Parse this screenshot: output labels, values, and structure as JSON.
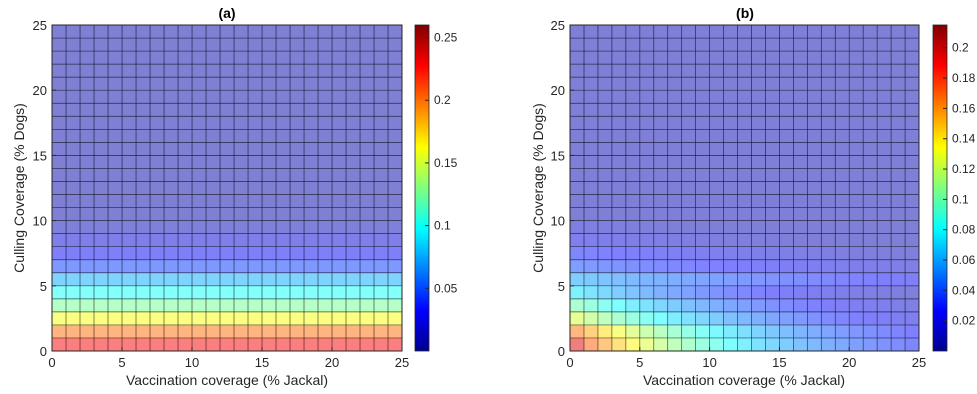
{
  "chart_data": [
    {
      "type": "heatmap",
      "title": "(a)",
      "xlabel": "Vaccination coverage (% Jackal)",
      "ylabel": "Culling Coverage (% Dogs)",
      "xlim": [
        0,
        25
      ],
      "ylim": [
        0,
        25
      ],
      "xticks": [
        0,
        5,
        10,
        15,
        20,
        25
      ],
      "yticks": [
        0,
        5,
        10,
        15,
        20,
        25
      ],
      "grid_cells": [
        25,
        25
      ],
      "colormap": "jet",
      "colorbar": {
        "range": [
          0,
          0.26
        ],
        "ticks": [
          0.05,
          0.1,
          0.15,
          0.2,
          0.25
        ],
        "tick_labels": [
          "0.05",
          "0.1",
          "0.15",
          "0.2",
          "0.25"
        ]
      },
      "row_values": [
        0.23,
        0.2,
        0.16,
        0.125,
        0.1,
        0.075,
        0.045,
        0.03,
        0.022,
        0.015,
        0.01
      ]
    },
    {
      "type": "heatmap",
      "title": "(b)",
      "xlabel": "Vaccination coverage (% Jackal)",
      "ylabel": "Culling Coverage (% Dogs)",
      "xlim": [
        0,
        25
      ],
      "ylim": [
        0,
        25
      ],
      "xticks": [
        0,
        5,
        10,
        15,
        20,
        25
      ],
      "yticks": [
        0,
        5,
        10,
        15,
        20,
        25
      ],
      "grid_cells": [
        25,
        25
      ],
      "colormap": "jet",
      "colorbar": {
        "range": [
          0,
          0.215
        ],
        "ticks": [
          0.02,
          0.04,
          0.06,
          0.08,
          0.1,
          0.12,
          0.14,
          0.16,
          0.18,
          0.2
        ],
        "tick_labels": [
          "0.02",
          "0.04",
          "0.06",
          "0.08",
          "0.1",
          "0.12",
          "0.14",
          "0.16",
          "0.18",
          "0.2"
        ]
      },
      "bottom_row_values": [
        0.195,
        0.17
      ],
      "row_values": [
        0.2,
        0.165,
        0.125,
        0.1,
        0.075,
        0.06,
        0.04,
        0.03,
        0.02,
        0.015,
        0.01
      ],
      "decay_per_column": 0.075
    }
  ]
}
